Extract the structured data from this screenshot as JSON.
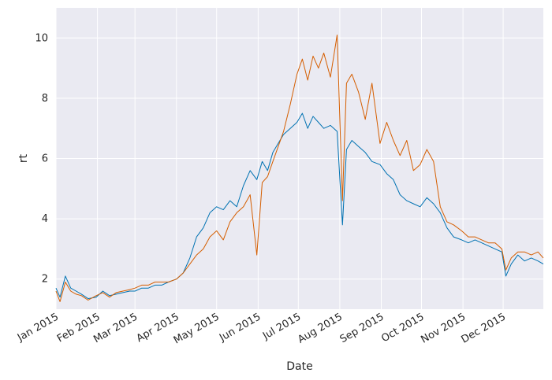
{
  "chart_data": {
    "type": "line",
    "title": "",
    "xlabel": "Date",
    "ylabel": "rt",
    "xlim": [
      "2015-01-01",
      "2015-12-31"
    ],
    "ylim": [
      1.0,
      11.0
    ],
    "x_ticks": [
      {
        "date": "2015-01-01",
        "label": "Jan 2015"
      },
      {
        "date": "2015-02-01",
        "label": "Feb 2015"
      },
      {
        "date": "2015-03-01",
        "label": "Mar 2015"
      },
      {
        "date": "2015-04-01",
        "label": "Apr 2015"
      },
      {
        "date": "2015-05-01",
        "label": "May 2015"
      },
      {
        "date": "2015-06-01",
        "label": "Jun 2015"
      },
      {
        "date": "2015-07-01",
        "label": "Jul 2015"
      },
      {
        "date": "2015-08-01",
        "label": "Aug 2015"
      },
      {
        "date": "2015-09-01",
        "label": "Sep 2015"
      },
      {
        "date": "2015-10-01",
        "label": "Oct 2015"
      },
      {
        "date": "2015-11-01",
        "label": "Nov 2015"
      },
      {
        "date": "2015-12-01",
        "label": "Dec 2015"
      }
    ],
    "y_ticks": [
      2,
      4,
      6,
      8,
      10
    ],
    "grid": true,
    "background": "#EAEAF2",
    "series": [
      {
        "color": "#0072B2",
        "points": [
          [
            "2015-01-01",
            1.7
          ],
          [
            "2015-01-04",
            1.4
          ],
          [
            "2015-01-08",
            2.1
          ],
          [
            "2015-01-12",
            1.7
          ],
          [
            "2015-01-16",
            1.6
          ],
          [
            "2015-01-20",
            1.5
          ],
          [
            "2015-01-25",
            1.35
          ],
          [
            "2015-01-31",
            1.4
          ],
          [
            "2015-02-05",
            1.6
          ],
          [
            "2015-02-10",
            1.45
          ],
          [
            "2015-02-15",
            1.5
          ],
          [
            "2015-02-20",
            1.55
          ],
          [
            "2015-02-25",
            1.6
          ],
          [
            "2015-03-01",
            1.6
          ],
          [
            "2015-03-06",
            1.7
          ],
          [
            "2015-03-11",
            1.7
          ],
          [
            "2015-03-16",
            1.8
          ],
          [
            "2015-03-21",
            1.8
          ],
          [
            "2015-03-26",
            1.9
          ],
          [
            "2015-04-01",
            2.0
          ],
          [
            "2015-04-06",
            2.2
          ],
          [
            "2015-04-11",
            2.7
          ],
          [
            "2015-04-16",
            3.4
          ],
          [
            "2015-04-21",
            3.7
          ],
          [
            "2015-04-26",
            4.2
          ],
          [
            "2015-05-01",
            4.4
          ],
          [
            "2015-05-06",
            4.3
          ],
          [
            "2015-05-11",
            4.6
          ],
          [
            "2015-05-16",
            4.4
          ],
          [
            "2015-05-21",
            5.1
          ],
          [
            "2015-05-26",
            5.6
          ],
          [
            "2015-05-31",
            5.3
          ],
          [
            "2015-06-04",
            5.9
          ],
          [
            "2015-06-08",
            5.6
          ],
          [
            "2015-06-12",
            6.2
          ],
          [
            "2015-06-16",
            6.5
          ],
          [
            "2015-06-20",
            6.8
          ],
          [
            "2015-06-25",
            7.0
          ],
          [
            "2015-06-30",
            7.2
          ],
          [
            "2015-07-04",
            7.5
          ],
          [
            "2015-07-08",
            7.0
          ],
          [
            "2015-07-12",
            7.4
          ],
          [
            "2015-07-16",
            7.2
          ],
          [
            "2015-07-20",
            7.0
          ],
          [
            "2015-07-25",
            7.1
          ],
          [
            "2015-07-30",
            6.9
          ],
          [
            "2015-08-03",
            3.8
          ],
          [
            "2015-08-06",
            6.3
          ],
          [
            "2015-08-10",
            6.6
          ],
          [
            "2015-08-15",
            6.4
          ],
          [
            "2015-08-20",
            6.2
          ],
          [
            "2015-08-25",
            5.9
          ],
          [
            "2015-08-31",
            5.8
          ],
          [
            "2015-09-05",
            5.5
          ],
          [
            "2015-09-10",
            5.3
          ],
          [
            "2015-09-15",
            4.8
          ],
          [
            "2015-09-20",
            4.6
          ],
          [
            "2015-09-25",
            4.5
          ],
          [
            "2015-09-30",
            4.4
          ],
          [
            "2015-10-05",
            4.7
          ],
          [
            "2015-10-10",
            4.5
          ],
          [
            "2015-10-15",
            4.2
          ],
          [
            "2015-10-20",
            3.7
          ],
          [
            "2015-10-25",
            3.4
          ],
          [
            "2015-10-31",
            3.3
          ],
          [
            "2015-11-05",
            3.2
          ],
          [
            "2015-11-10",
            3.3
          ],
          [
            "2015-11-15",
            3.2
          ],
          [
            "2015-11-20",
            3.1
          ],
          [
            "2015-11-25",
            3.0
          ],
          [
            "2015-11-30",
            2.9
          ],
          [
            "2015-12-03",
            2.1
          ],
          [
            "2015-12-07",
            2.5
          ],
          [
            "2015-12-12",
            2.8
          ],
          [
            "2015-12-17",
            2.6
          ],
          [
            "2015-12-22",
            2.7
          ],
          [
            "2015-12-27",
            2.6
          ],
          [
            "2015-12-31",
            2.5
          ]
        ]
      },
      {
        "color": "#D55E00",
        "points": [
          [
            "2015-01-01",
            1.6
          ],
          [
            "2015-01-04",
            1.25
          ],
          [
            "2015-01-08",
            1.9
          ],
          [
            "2015-01-12",
            1.6
          ],
          [
            "2015-01-16",
            1.5
          ],
          [
            "2015-01-20",
            1.45
          ],
          [
            "2015-01-25",
            1.3
          ],
          [
            "2015-01-31",
            1.45
          ],
          [
            "2015-02-05",
            1.55
          ],
          [
            "2015-02-10",
            1.4
          ],
          [
            "2015-02-15",
            1.55
          ],
          [
            "2015-02-20",
            1.6
          ],
          [
            "2015-02-25",
            1.65
          ],
          [
            "2015-03-01",
            1.7
          ],
          [
            "2015-03-06",
            1.8
          ],
          [
            "2015-03-11",
            1.8
          ],
          [
            "2015-03-16",
            1.9
          ],
          [
            "2015-03-21",
            1.9
          ],
          [
            "2015-03-26",
            1.9
          ],
          [
            "2015-04-01",
            2.0
          ],
          [
            "2015-04-06",
            2.2
          ],
          [
            "2015-04-11",
            2.5
          ],
          [
            "2015-04-16",
            2.8
          ],
          [
            "2015-04-21",
            3.0
          ],
          [
            "2015-04-26",
            3.4
          ],
          [
            "2015-05-01",
            3.6
          ],
          [
            "2015-05-06",
            3.3
          ],
          [
            "2015-05-11",
            3.9
          ],
          [
            "2015-05-16",
            4.2
          ],
          [
            "2015-05-21",
            4.4
          ],
          [
            "2015-05-26",
            4.8
          ],
          [
            "2015-05-31",
            2.8
          ],
          [
            "2015-06-04",
            5.2
          ],
          [
            "2015-06-08",
            5.4
          ],
          [
            "2015-06-12",
            5.9
          ],
          [
            "2015-06-16",
            6.4
          ],
          [
            "2015-06-20",
            6.9
          ],
          [
            "2015-06-25",
            7.8
          ],
          [
            "2015-06-30",
            8.8
          ],
          [
            "2015-07-04",
            9.3
          ],
          [
            "2015-07-08",
            8.6
          ],
          [
            "2015-07-12",
            9.4
          ],
          [
            "2015-07-16",
            9.0
          ],
          [
            "2015-07-20",
            9.5
          ],
          [
            "2015-07-25",
            8.7
          ],
          [
            "2015-07-30",
            10.1
          ],
          [
            "2015-08-03",
            4.6
          ],
          [
            "2015-08-06",
            8.5
          ],
          [
            "2015-08-10",
            8.8
          ],
          [
            "2015-08-15",
            8.2
          ],
          [
            "2015-08-20",
            7.3
          ],
          [
            "2015-08-25",
            8.5
          ],
          [
            "2015-08-31",
            6.5
          ],
          [
            "2015-09-05",
            7.2
          ],
          [
            "2015-09-10",
            6.6
          ],
          [
            "2015-09-15",
            6.1
          ],
          [
            "2015-09-20",
            6.6
          ],
          [
            "2015-09-25",
            5.6
          ],
          [
            "2015-09-30",
            5.8
          ],
          [
            "2015-10-05",
            6.3
          ],
          [
            "2015-10-10",
            5.9
          ],
          [
            "2015-10-15",
            4.4
          ],
          [
            "2015-10-20",
            3.9
          ],
          [
            "2015-10-25",
            3.8
          ],
          [
            "2015-10-31",
            3.6
          ],
          [
            "2015-11-05",
            3.4
          ],
          [
            "2015-11-10",
            3.4
          ],
          [
            "2015-11-15",
            3.3
          ],
          [
            "2015-11-20",
            3.2
          ],
          [
            "2015-11-25",
            3.2
          ],
          [
            "2015-11-30",
            3.0
          ],
          [
            "2015-12-03",
            2.3
          ],
          [
            "2015-12-07",
            2.7
          ],
          [
            "2015-12-12",
            2.9
          ],
          [
            "2015-12-17",
            2.9
          ],
          [
            "2015-12-22",
            2.8
          ],
          [
            "2015-12-27",
            2.9
          ],
          [
            "2015-12-31",
            2.7
          ]
        ]
      }
    ]
  }
}
